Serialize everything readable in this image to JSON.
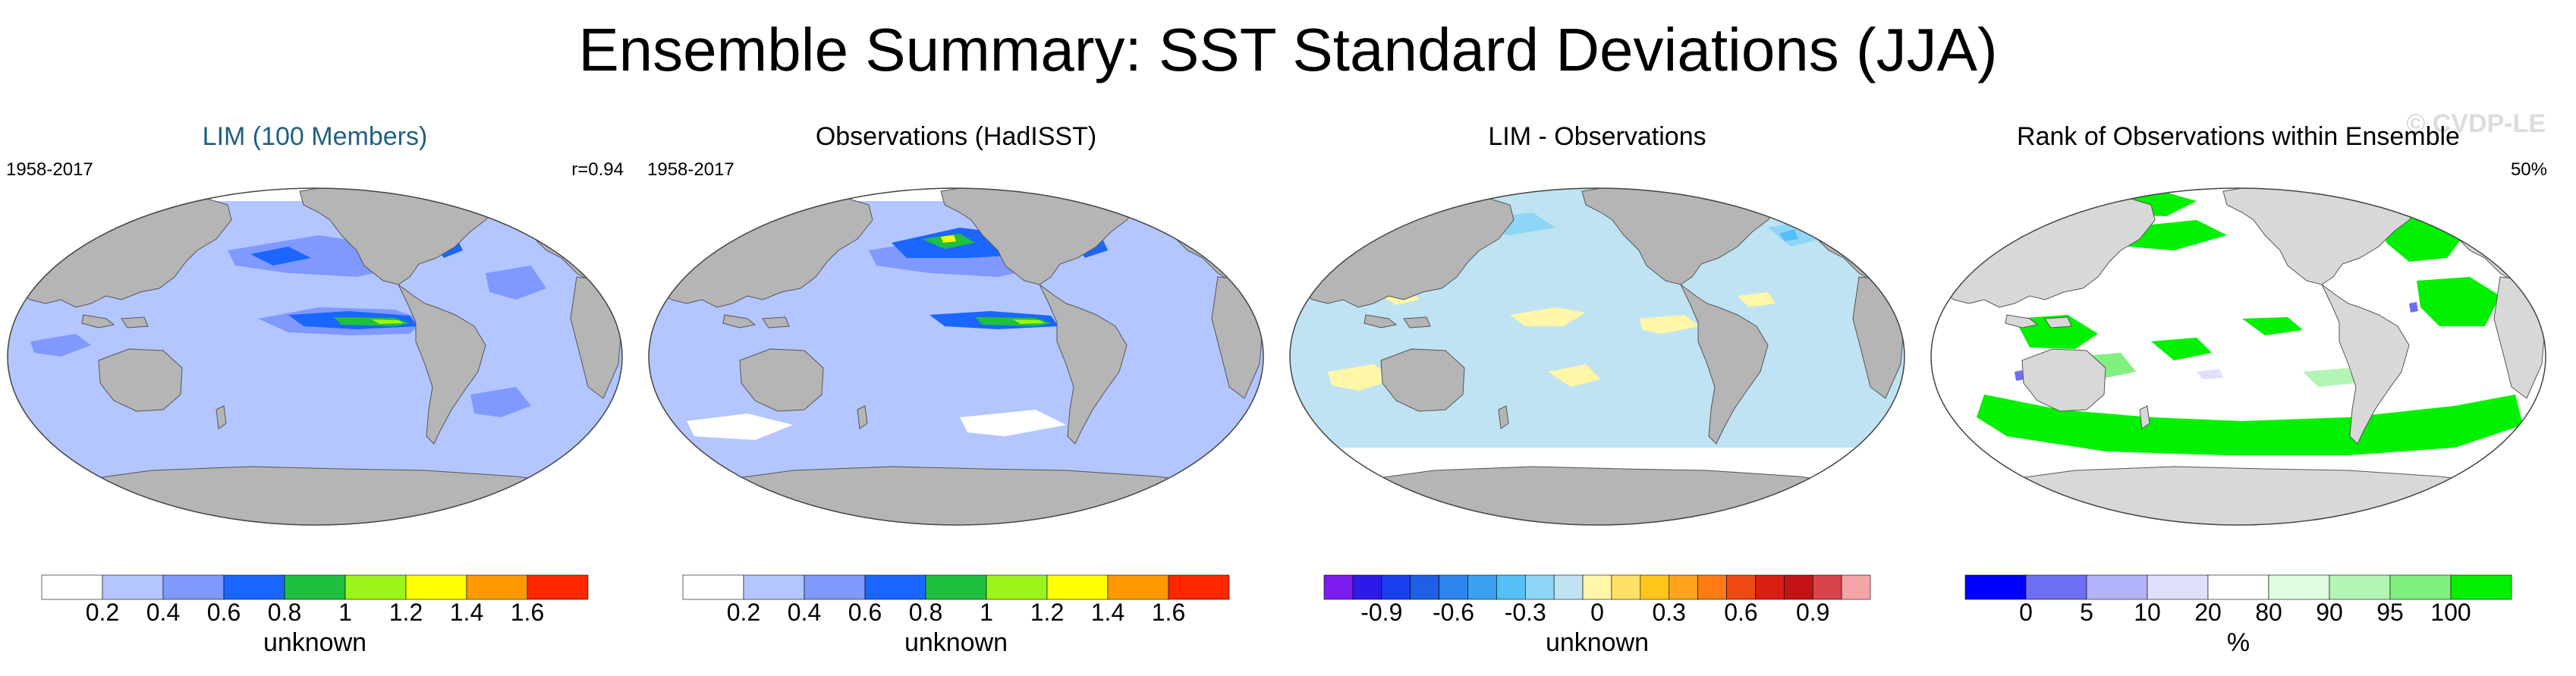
{
  "title": "Ensemble Summary: SST Standard Deviations (JJA)",
  "watermark": "© CVDP-LE",
  "colors": {
    "land": "#b5b5b5",
    "land_light": "#d8d8d8",
    "lim_title": "#1f5f82"
  },
  "panels": [
    {
      "title": "LIM (100 Members)",
      "left_note": "1958-2017",
      "right_note": "r=0.94",
      "map": "std",
      "colorbar": {
        "colors": [
          "#ffffff",
          "#b3c6ff",
          "#8099ff",
          "#1a66ff",
          "#1fbf3f",
          "#9cf51a",
          "#ffff00",
          "#ff9900",
          "#ff2600"
        ],
        "ticks": [
          "0.2",
          "0.4",
          "0.6",
          "0.8",
          "1",
          "1.2",
          "1.4",
          "1.6"
        ],
        "label": "unknown"
      }
    },
    {
      "title": "Observations (HadISST)",
      "left_note": "1958-2017",
      "right_note": "",
      "map": "std_obs",
      "colorbar": {
        "colors": [
          "#ffffff",
          "#b3c6ff",
          "#8099ff",
          "#1a66ff",
          "#1fbf3f",
          "#9cf51a",
          "#ffff00",
          "#ff9900",
          "#ff2600"
        ],
        "ticks": [
          "0.2",
          "0.4",
          "0.6",
          "0.8",
          "1",
          "1.2",
          "1.4",
          "1.6"
        ],
        "label": "unknown"
      }
    },
    {
      "title": "LIM - Observations",
      "left_note": "",
      "right_note": "",
      "map": "diff",
      "colorbar": {
        "colors": [
          "#7a1cf0",
          "#2e1ae8",
          "#1a3ff0",
          "#1f5fe6",
          "#2f84ee",
          "#3aa1f2",
          "#55bff7",
          "#8ed6f7",
          "#bfe3f2",
          "#fff6a8",
          "#ffe066",
          "#ffc61a",
          "#ffa31a",
          "#ff7a14",
          "#f04a14",
          "#d91f14",
          "#c21414",
          "#d8444a",
          "#f5a5a8"
        ],
        "ticks": [
          "-0.9",
          "-0.6",
          "-0.3",
          "0",
          "0.3",
          "0.6",
          "0.9"
        ],
        "label": "unknown"
      }
    },
    {
      "title": "Rank of Observations within Ensemble",
      "left_note": "",
      "right_note": "50%",
      "map": "rank",
      "colorbar": {
        "colors": [
          "#0000ff",
          "#6e6ef5",
          "#b3b3fa",
          "#e0e0fc",
          "#ffffff",
          "#e0fce0",
          "#b3f5b3",
          "#80f080",
          "#00f000"
        ],
        "ticks": [
          "0",
          "5",
          "10",
          "20",
          "80",
          "90",
          "95",
          "100"
        ],
        "label": "%"
      }
    }
  ]
}
